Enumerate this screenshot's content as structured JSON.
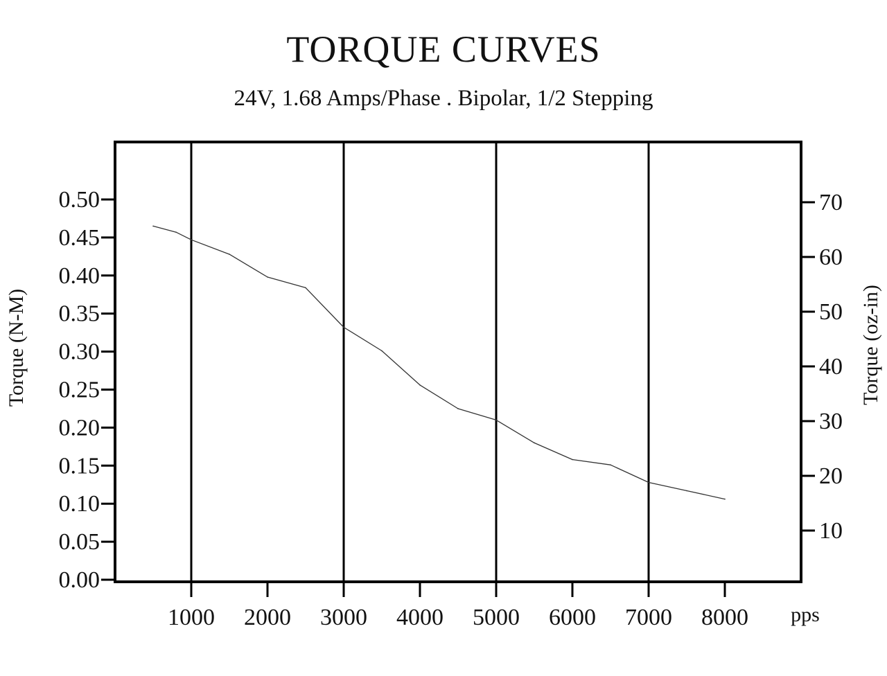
{
  "chart_data": {
    "type": "line",
    "title": "TORQUE CURVES",
    "subtitle": "24V, 1.68 Amps/Phase . Bipolar, 1/2 Stepping",
    "xlabel": "pps",
    "ylabel": "Torque (N-M)",
    "y2label": "Torque (oz-in)",
    "xlim": [
      0,
      8000
    ],
    "ylim": [
      0,
      0.5
    ],
    "y2lim": [
      0,
      70
    ],
    "x_ticks": [
      1000,
      2000,
      3000,
      4000,
      5000,
      6000,
      7000,
      8000
    ],
    "x_tick_labels": [
      "1000",
      "2000",
      "3000",
      "4000",
      "5000",
      "6000",
      "7000",
      "8000"
    ],
    "y_ticks": [
      0,
      0.05,
      0.1,
      0.15,
      0.2,
      0.25,
      0.3,
      0.35,
      0.4,
      0.45,
      0.5
    ],
    "y_tick_labels": [
      "0.00",
      "0.05",
      "0.10",
      "0.15",
      "0.20",
      "0.25",
      "0.30",
      "0.35",
      "0.40",
      "0.45",
      "0.50"
    ],
    "y2_ticks": [
      10,
      20,
      30,
      40,
      50,
      60,
      70
    ],
    "y2_tick_labels": [
      "10",
      "20",
      "30",
      "40",
      "50",
      "60",
      "70"
    ],
    "major_gridlines_x": [
      1000,
      3000,
      5000,
      7000
    ],
    "grid": "vertical",
    "series": [
      {
        "color": "#333333",
        "x": [
          500,
          800,
          1000,
          1500,
          2000,
          2500,
          3000,
          3500,
          4000,
          4500,
          5000,
          5500,
          6000,
          6500,
          7000,
          7500,
          8000
        ],
        "y": [
          0.465,
          0.457,
          0.447,
          0.428,
          0.398,
          0.384,
          0.332,
          0.301,
          0.256,
          0.225,
          0.21,
          0.18,
          0.158,
          0.151,
          0.128,
          0.117,
          0.106
        ]
      }
    ]
  }
}
